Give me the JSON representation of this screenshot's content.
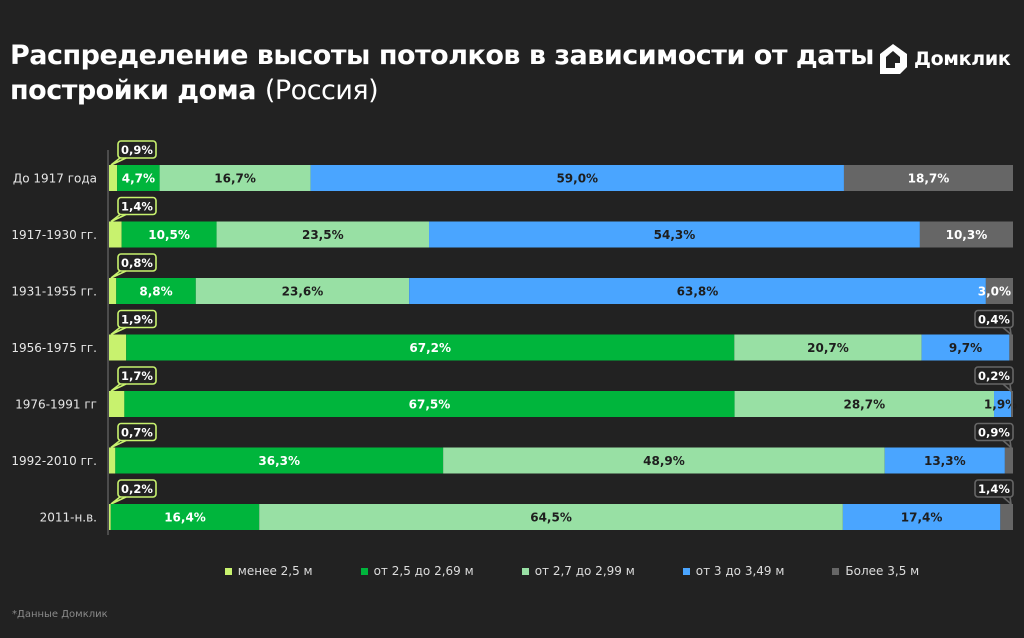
{
  "title": {
    "main": "Распределение высоты потолков в зависимости от даты постройки дома",
    "suffix": "(Россия)"
  },
  "logo": {
    "text": "Домклик"
  },
  "footnote": "*Данные Домклик",
  "chart_data": {
    "type": "bar",
    "orientation": "horizontal",
    "stacked": "100%",
    "categories": [
      "До 1917 года",
      "1917-1930 гг.",
      "1931-1955 гг.",
      "1956-1975 гг.",
      "1976-1991 гг",
      "1992-2010 гг.",
      "2011-н.в."
    ],
    "series": [
      {
        "name": "менее 2,5 м",
        "color": "#c8f26e",
        "values": [
          0.9,
          1.4,
          0.8,
          1.9,
          1.7,
          0.7,
          0.2
        ],
        "labels": [
          "0,9%",
          "1,4%",
          "0,8%",
          "1,9%",
          "1,7%",
          "0,7%",
          "0,2%"
        ]
      },
      {
        "name": "от 2,5 до 2,69 м",
        "color": "#00b53c",
        "values": [
          4.7,
          10.5,
          8.8,
          67.2,
          67.5,
          36.3,
          16.4
        ],
        "labels": [
          "4,7%",
          "10,5%",
          "8,8%",
          "67,2%",
          "67,5%",
          "36,3%",
          "16,4%"
        ]
      },
      {
        "name": "от 2,7 до 2,99 м",
        "color": "#98e0a4",
        "values": [
          16.7,
          23.5,
          23.6,
          20.7,
          28.7,
          48.9,
          64.5
        ],
        "labels": [
          "16,7%",
          "23,5%",
          "23,6%",
          "20,7%",
          "28,7%",
          "48,9%",
          "64,5%"
        ]
      },
      {
        "name": "от 3 до 3,49 м",
        "color": "#4aa5ff",
        "values": [
          59.0,
          54.3,
          63.8,
          9.7,
          1.9,
          13.3,
          17.4
        ],
        "labels": [
          "59,0%",
          "54,3%",
          "63,8%",
          "9,7%",
          "1,9%",
          "13,3%",
          "17,4%"
        ]
      },
      {
        "name": "Более 3,5 м",
        "color": "#666666",
        "values": [
          18.7,
          10.3,
          3.0,
          0.4,
          0.2,
          0.9,
          1.4
        ],
        "labels": [
          "18,7%",
          "10,3%",
          "3,0%",
          "0,4%",
          "0,2%",
          "0,9%",
          "1,4%"
        ]
      }
    ],
    "xlim": [
      0,
      100
    ],
    "legend": "bottom"
  }
}
